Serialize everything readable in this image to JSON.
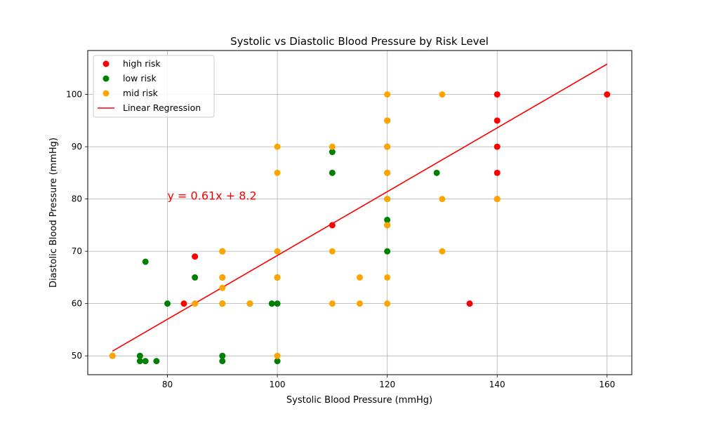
{
  "chart_data": {
    "type": "scatter",
    "title": "Systolic vs Diastolic Blood Pressure by Risk Level",
    "xlabel": "Systolic Blood Pressure (mmHg)",
    "ylabel": "Diastolic Blood Pressure (mmHg)",
    "xlim": [
      65.5,
      164.5
    ],
    "ylim": [
      46.4,
      108.4
    ],
    "xticks": [
      80,
      100,
      120,
      140,
      160
    ],
    "yticks": [
      50,
      60,
      70,
      80,
      90,
      100
    ],
    "grid": true,
    "legend_position": "top-left",
    "series": [
      {
        "name": "high risk",
        "color": "#ff0000",
        "points": [
          [
            83,
            60
          ],
          [
            85,
            69
          ],
          [
            110,
            75
          ],
          [
            120,
            95
          ],
          [
            135,
            60
          ],
          [
            140,
            100
          ],
          [
            140,
            95
          ],
          [
            140,
            90
          ],
          [
            140,
            85
          ],
          [
            140,
            80
          ],
          [
            160,
            100
          ],
          [
            120,
            90
          ],
          [
            120,
            85
          ]
        ]
      },
      {
        "name": "low risk",
        "color": "#008000",
        "points": [
          [
            70,
            50
          ],
          [
            75,
            50
          ],
          [
            75,
            49
          ],
          [
            76,
            68
          ],
          [
            76,
            49
          ],
          [
            78,
            49
          ],
          [
            80,
            60
          ],
          [
            85,
            65
          ],
          [
            90,
            70
          ],
          [
            90,
            65
          ],
          [
            90,
            60
          ],
          [
            90,
            50
          ],
          [
            90,
            49
          ],
          [
            95,
            60
          ],
          [
            99,
            60
          ],
          [
            100,
            65
          ],
          [
            100,
            60
          ],
          [
            100,
            49
          ],
          [
            110,
            89
          ],
          [
            110,
            85
          ],
          [
            120,
            80
          ],
          [
            120,
            76
          ],
          [
            120,
            75
          ],
          [
            120,
            70
          ],
          [
            129,
            85
          ]
        ]
      },
      {
        "name": "mid risk",
        "color": "#ffa500",
        "points": [
          [
            70,
            50
          ],
          [
            85,
            60
          ],
          [
            90,
            70
          ],
          [
            90,
            65
          ],
          [
            90,
            63
          ],
          [
            90,
            60
          ],
          [
            95,
            60
          ],
          [
            100,
            90
          ],
          [
            100,
            85
          ],
          [
            100,
            70
          ],
          [
            100,
            65
          ],
          [
            100,
            50
          ],
          [
            110,
            90
          ],
          [
            110,
            70
          ],
          [
            110,
            60
          ],
          [
            115,
            65
          ],
          [
            115,
            60
          ],
          [
            120,
            100
          ],
          [
            120,
            95
          ],
          [
            120,
            90
          ],
          [
            120,
            85
          ],
          [
            120,
            80
          ],
          [
            120,
            75
          ],
          [
            120,
            65
          ],
          [
            120,
            60
          ],
          [
            130,
            100
          ],
          [
            130,
            80
          ],
          [
            130,
            70
          ],
          [
            140,
            80
          ]
        ]
      }
    ],
    "regression": {
      "name": "Linear Regression",
      "color": "#ff0000",
      "equation": "y = 0.61x + 8.2",
      "slope": 0.61,
      "intercept": 8.2,
      "x_range": [
        70,
        160
      ],
      "label_position": [
        80,
        80
      ]
    }
  }
}
